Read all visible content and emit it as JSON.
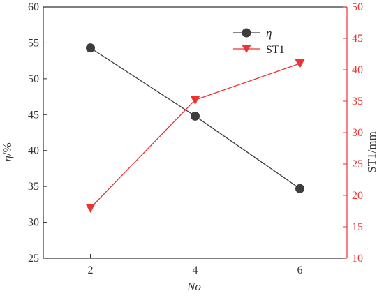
{
  "colors": {
    "left_series": "#3d3d3d",
    "right_series": "#ee3333",
    "axis_left": "#333333",
    "axis_right": "#ee3333"
  },
  "chart_data": {
    "type": "line",
    "x": [
      2,
      4,
      6
    ],
    "x_ticks": [
      "2",
      "4",
      "6"
    ],
    "xlim": [
      1.1,
      6.9
    ],
    "xlabel": "No",
    "y_left": {
      "label_symbol": "η",
      "label_unit": "/%",
      "ylim": [
        25,
        60
      ],
      "ticks": [
        25,
        30,
        35,
        40,
        45,
        50,
        55,
        60
      ]
    },
    "y_right": {
      "label": "ST1/mm",
      "ylim": [
        10,
        50
      ],
      "ticks": [
        10,
        15,
        20,
        25,
        30,
        35,
        40,
        45,
        50
      ]
    },
    "series": [
      {
        "name": "η",
        "axis": "left",
        "marker": "circle",
        "color": "#3d3d3d",
        "values": [
          54.3,
          44.8,
          34.7
        ]
      },
      {
        "name": "ST1",
        "axis": "right",
        "marker": "triangle-down",
        "color": "#ee3333",
        "values": [
          18.0,
          35.2,
          41.0
        ]
      }
    ],
    "legend_position": "top-right",
    "grid": false
  }
}
